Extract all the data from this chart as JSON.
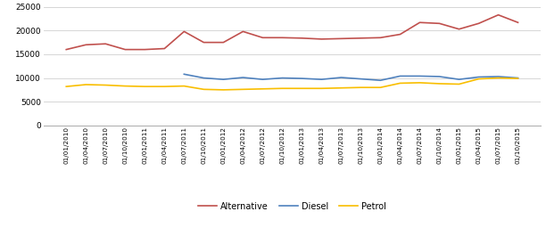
{
  "dates": [
    "01/01/2010",
    "01/04/2010",
    "01/07/2010",
    "01/10/2010",
    "01/01/2011",
    "01/04/2011",
    "01/07/2011",
    "01/10/2011",
    "01/01/2012",
    "01/04/2012",
    "01/07/2012",
    "01/10/2012",
    "01/01/2013",
    "01/04/2013",
    "01/07/2013",
    "01/10/2013",
    "01/01/2014",
    "01/04/2014",
    "01/07/2014",
    "01/10/2014",
    "01/01/2015",
    "01/04/2015",
    "01/07/2015",
    "01/10/2015"
  ],
  "alternative": [
    16000,
    17000,
    17200,
    16000,
    16000,
    16200,
    19800,
    17500,
    17500,
    19800,
    18500,
    18500,
    18400,
    18200,
    18300,
    18400,
    18500,
    19200,
    21700,
    21500,
    20300,
    21500,
    23300,
    21700
  ],
  "diesel": [
    null,
    null,
    null,
    null,
    null,
    null,
    10800,
    10000,
    9700,
    10100,
    9700,
    10000,
    9900,
    9700,
    10100,
    9800,
    9500,
    10400,
    10400,
    10300,
    9700,
    10200,
    10300,
    10000
  ],
  "petrol": [
    8200,
    8600,
    8500,
    8300,
    8200,
    8200,
    8300,
    7600,
    7500,
    7600,
    7700,
    7800,
    7800,
    7800,
    7900,
    8000,
    8000,
    8900,
    9000,
    8800,
    8700,
    9800,
    10000,
    9900
  ],
  "alternative_color": "#c0504d",
  "diesel_color": "#4f81bd",
  "petrol_color": "#f9be00",
  "line_width": 1.2,
  "ylim": [
    0,
    25000
  ],
  "yticks": [
    0,
    5000,
    10000,
    15000,
    20000,
    25000
  ],
  "background_color": "#ffffff",
  "grid_color": "#d0d0d0"
}
